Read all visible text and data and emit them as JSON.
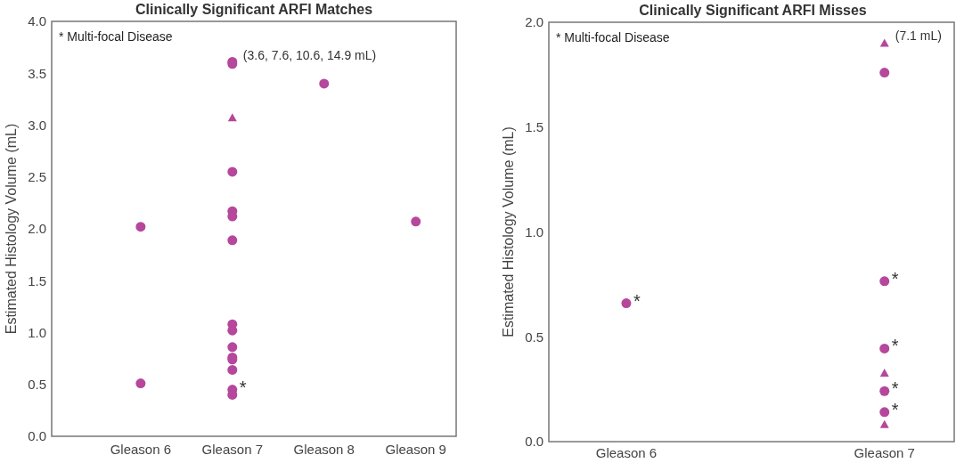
{
  "chart_data": [
    {
      "type": "scatter",
      "title": "Clinically Significant ARFI Matches",
      "ylabel": "Estimated Histology Volume (mL)",
      "categories": [
        "Gleason 6",
        "Gleason 7",
        "Gleason 8",
        "Gleason 9"
      ],
      "ylim": [
        0,
        4
      ],
      "yticks": [
        {
          "value": 0,
          "label": "0.0"
        },
        0.5,
        {
          "value": 1,
          "label": "1.0"
        },
        1.5,
        {
          "value": 2,
          "label": "2.0"
        },
        2.5,
        {
          "value": 3,
          "label": "3.0"
        },
        3.5,
        {
          "value": 4,
          "label": "4.0"
        }
      ],
      "grid": false,
      "series": [
        {
          "color": "#b5479c",
          "marker": "circle",
          "x": [
            "Gleason 6",
            "Gleason 6",
            "Gleason 7",
            "Gleason 7",
            "Gleason 7",
            "Gleason 7",
            "Gleason 7",
            "Gleason 7",
            "Gleason 7",
            "Gleason 7",
            "Gleason 7",
            "Gleason 7",
            "Gleason 7",
            "Gleason 7",
            "Gleason 7",
            "Gleason 7",
            "Gleason 8",
            "Gleason 9"
          ],
          "values": [
            2.02,
            0.51,
            3.61,
            3.59,
            2.55,
            2.17,
            2.12,
            1.89,
            1.08,
            1.02,
            0.86,
            0.76,
            0.74,
            0.64,
            0.45,
            0.4,
            3.4,
            2.07
          ]
        },
        {
          "color": "#b5479c",
          "marker": "triangle",
          "x": [
            "Gleason 7"
          ],
          "values": [
            3.07
          ]
        }
      ],
      "annotations": [
        "* Multi-focal Disease",
        {
          "text": "(3.6, 7.6, 10.6, 14.9 mL)",
          "x": "Gleason 7",
          "y": 3.6
        },
        {
          "text": "*",
          "x": "Gleason 7",
          "y": 0.45
        }
      ]
    },
    {
      "type": "scatter",
      "title": "Clinically Significant ARFI Misses",
      "ylabel": "Estimated Histology Volume (mL)",
      "categories": [
        "Gleason 6",
        "Gleason 7"
      ],
      "ylim": [
        0,
        2
      ],
      "yticks": [
        {
          "value": 0,
          "label": "0.0"
        },
        0.5,
        {
          "value": 1,
          "label": "1.0"
        },
        1.5,
        {
          "value": 2,
          "label": "2.0"
        }
      ],
      "grid": false,
      "series": [
        {
          "color": "#b5479c",
          "marker": "circle",
          "x": [
            "Gleason 6",
            "Gleason 7",
            "Gleason 7",
            "Gleason 7",
            "Gleason 7",
            "Gleason 7"
          ],
          "values": [
            0.66,
            1.76,
            0.765,
            0.444,
            0.241,
            0.141
          ]
        },
        {
          "color": "#b5479c",
          "marker": "triangle",
          "x": [
            "Gleason 7",
            "Gleason 7",
            "Gleason 7"
          ],
          "values": [
            1.9,
            0.327,
            0.082
          ]
        }
      ],
      "annotations": [
        "* Multi-focal Disease",
        {
          "text": "(7.1 mL)",
          "x": "Gleason 7",
          "y": 1.9
        },
        {
          "text": "*",
          "x": "Gleason 6",
          "y": 0.66
        },
        {
          "text": "*",
          "x": "Gleason 7",
          "y": 0.765
        },
        {
          "text": "*",
          "x": "Gleason 7",
          "y": 0.444
        },
        {
          "text": "*",
          "x": "Gleason 7",
          "y": 0.241
        },
        {
          "text": "*",
          "x": "Gleason 7",
          "y": 0.141
        }
      ]
    }
  ]
}
